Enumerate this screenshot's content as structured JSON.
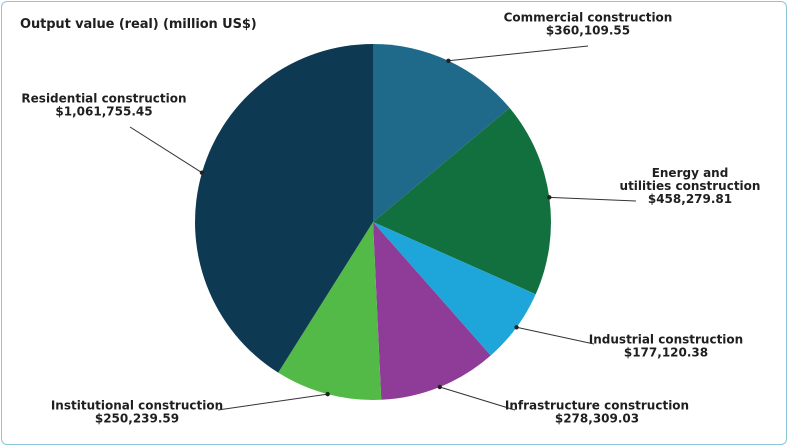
{
  "chart_data": {
    "type": "pie",
    "title": "Output value (real) (million US$)",
    "slices": [
      {
        "label": "Commercial construction",
        "value_label": "$360,109.55",
        "value": 360109.55,
        "color": "#1f6a8a"
      },
      {
        "label": "Energy and utilities construction",
        "label_lines": [
          "Energy and",
          "utilities construction"
        ],
        "value_label": "$458,279.81",
        "value": 458279.81,
        "color": "#11703e"
      },
      {
        "label": "Industrial construction",
        "value_label": "$177,120.38",
        "value": 177120.38,
        "color": "#1ea6da"
      },
      {
        "label": "Infrastructure construction",
        "value_label": "$278,309.03",
        "value": 278309.03,
        "color": "#8e3c97"
      },
      {
        "label": "Institutional construction",
        "value_label": "$250,239.59",
        "value": 250239.59,
        "color": "#53b947"
      },
      {
        "label": "Residential construction",
        "value_label": "$1,061,755.45",
        "value": 1061755.45,
        "color": "#0d3a52"
      }
    ]
  }
}
